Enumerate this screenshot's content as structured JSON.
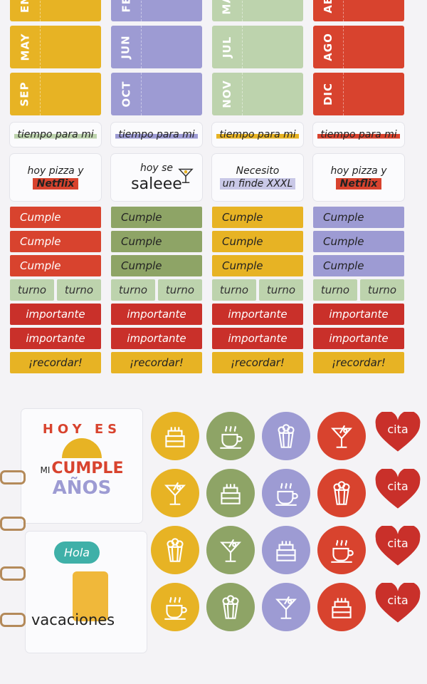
{
  "colors": {
    "yellow": "#e7b324",
    "lavender": "#9d9bd3",
    "sage": "#bdd3ad",
    "red": "#d8432e",
    "green": "#8ea466",
    "deepred": "#c9302a",
    "wood": "#d9a860"
  },
  "months": [
    {
      "color": "yellow",
      "items": [
        "ENE",
        "MAY",
        "SEP"
      ]
    },
    {
      "color": "lavender",
      "items": [
        "FEB",
        "JUN",
        "OCT"
      ]
    },
    {
      "color": "sage",
      "items": [
        "MAR",
        "JUL",
        "NOV"
      ]
    },
    {
      "color": "red",
      "items": [
        "ABR",
        "AGO",
        "DIC"
      ]
    }
  ],
  "tiempo": [
    {
      "text": "tiempo para mi",
      "color": "sage"
    },
    {
      "text": "tiempo para mi",
      "color": "lavender"
    },
    {
      "text": "tiempo para mi",
      "color": "yellow"
    },
    {
      "text": "tiempo para mi",
      "color": "red"
    }
  ],
  "messages": [
    {
      "line1": "hoy pizza y",
      "line2": "Netflix"
    },
    {
      "line1": "hoy se",
      "line2": "saleee"
    },
    {
      "line1": "Necesito",
      "line2": "un finde XXXL"
    },
    {
      "line1": "hoy pizza y",
      "line2": "Netflix"
    }
  ],
  "strip_columns": [
    {
      "cumple_color": "red",
      "rows": [
        "Cumple",
        "Cumple",
        "Cumple"
      ]
    },
    {
      "cumple_color": "green",
      "rows": [
        "Cumple",
        "Cumple",
        "Cumple"
      ]
    },
    {
      "cumple_color": "yellow",
      "rows": [
        "Cumple",
        "Cumple",
        "Cumple"
      ]
    },
    {
      "cumple_color": "lavender",
      "rows": [
        "Cumple",
        "Cumple",
        "Cumple"
      ]
    }
  ],
  "turno": "turno",
  "importante": "importante",
  "recordar": "¡recordar!",
  "big_stickers": [
    {
      "top": "HOY ES",
      "mi": "MI",
      "cumple": "CUMPLE",
      "anos": "AÑOS"
    },
    {
      "bubble": "Hola",
      "word": "vacaciones"
    }
  ],
  "circles": [
    [
      "cake",
      "coffee",
      "popcorn",
      "martini"
    ],
    [
      "martini",
      "cake",
      "coffee",
      "popcorn"
    ],
    [
      "popcorn",
      "martini",
      "cake",
      "coffee"
    ],
    [
      "coffee",
      "popcorn",
      "martini",
      "cake"
    ]
  ],
  "circle_colors": [
    "yellow",
    "green",
    "lavender",
    "red"
  ],
  "hearts": [
    "cita",
    "cita",
    "cita",
    "cita"
  ]
}
